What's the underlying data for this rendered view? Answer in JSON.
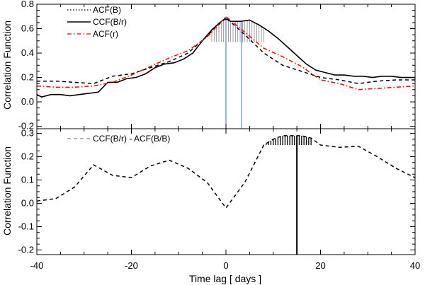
{
  "chart_data": [
    {
      "type": "line",
      "panel": "top",
      "ylabel": "Correlation Function",
      "xlim": [
        -40,
        40
      ],
      "ylim": [
        -0.22,
        0.8
      ],
      "yticks": [
        -0.2,
        0.0,
        0.2,
        0.4,
        0.6,
        0.8
      ],
      "ytick_labels": [
        "-0.2",
        "0.0",
        "0.2",
        "0.4",
        "0.6",
        "0.8"
      ],
      "legend_position": "top-left",
      "series": [
        {
          "name": "ACF(B)",
          "style": "dashed",
          "color": "#000000",
          "x": [
            -40,
            -36,
            -32,
            -28,
            -24,
            -20,
            -16,
            -12,
            -8,
            -4,
            0,
            4,
            8,
            12,
            16,
            20,
            24,
            28,
            32,
            36,
            40
          ],
          "y": [
            0.17,
            0.17,
            0.16,
            0.15,
            0.21,
            0.23,
            0.28,
            0.33,
            0.4,
            0.54,
            0.69,
            0.55,
            0.4,
            0.3,
            0.25,
            0.2,
            0.18,
            0.15,
            0.17,
            0.18,
            0.18
          ]
        },
        {
          "name": "CCF(B/r)",
          "style": "solid",
          "color": "#000000",
          "x": [
            -40,
            -39,
            -37,
            -35,
            -33,
            -31,
            -29,
            -27,
            -25,
            -23,
            -21,
            -19,
            -17,
            -15,
            -13,
            -11,
            -9,
            -7,
            -5,
            -3,
            -1,
            0,
            1,
            3,
            5,
            7,
            9,
            11,
            13,
            15,
            17,
            19,
            21,
            23,
            25,
            27,
            29,
            31,
            33,
            35,
            37,
            40
          ],
          "y": [
            0.06,
            0.04,
            0.06,
            0.06,
            0.05,
            0.06,
            0.07,
            0.08,
            0.16,
            0.16,
            0.19,
            0.2,
            0.23,
            0.28,
            0.31,
            0.32,
            0.35,
            0.4,
            0.5,
            0.59,
            0.66,
            0.68,
            0.66,
            0.66,
            0.67,
            0.63,
            0.58,
            0.52,
            0.45,
            0.38,
            0.31,
            0.26,
            0.24,
            0.22,
            0.22,
            0.21,
            0.21,
            0.2,
            0.21,
            0.21,
            0.2,
            0.2
          ]
        },
        {
          "name": "ACF(r)",
          "style": "dash-dot",
          "color": "#ff0000",
          "x": [
            -40,
            -36,
            -32,
            -28,
            -24,
            -20,
            -16,
            -12,
            -8,
            -4,
            0,
            4,
            8,
            12,
            16,
            20,
            24,
            28,
            32,
            36,
            40
          ],
          "y": [
            0.13,
            0.12,
            0.12,
            0.13,
            0.16,
            0.22,
            0.29,
            0.36,
            0.42,
            0.53,
            0.7,
            0.57,
            0.44,
            0.37,
            0.29,
            0.18,
            0.15,
            0.1,
            0.11,
            0.12,
            0.13
          ]
        }
      ],
      "annotations": {
        "hatch_region_x": [
          -3,
          8
        ],
        "hatch_threshold_y": 0.49,
        "vertical_lines_x": [
          0.0,
          3.3
        ]
      }
    },
    {
      "type": "line",
      "panel": "bottom",
      "xlabel": "Time lag  [ days ]",
      "ylabel": "Correlation Function",
      "xlim": [
        -40,
        40
      ],
      "ylim": [
        -0.22,
        0.32
      ],
      "xticks": [
        -40,
        -20,
        0,
        20,
        40
      ],
      "xtick_labels": [
        "-40",
        "-20",
        "0",
        "20",
        "40"
      ],
      "yticks": [
        -0.2,
        -0.1,
        0.0,
        0.1,
        0.2,
        0.3
      ],
      "ytick_labels": [
        "-0.2",
        "-0.1",
        "0.0",
        "0.1",
        "0.2",
        "0.3"
      ],
      "legend_position": "top-left",
      "series": [
        {
          "name": "CCF(B/r) - ACF(B/B)",
          "style": "dashed",
          "color": "#000000",
          "x": [
            -40,
            -36,
            -32,
            -28,
            -24,
            -20,
            -16,
            -12,
            -8,
            -4,
            0,
            4,
            8,
            10,
            12,
            14,
            16,
            18,
            20,
            24,
            28,
            32,
            36,
            40
          ],
          "y": [
            0.01,
            0.02,
            0.07,
            0.165,
            0.12,
            0.11,
            0.16,
            0.185,
            0.15,
            0.09,
            -0.02,
            0.09,
            0.25,
            0.275,
            0.29,
            0.29,
            0.29,
            0.28,
            0.25,
            0.24,
            0.245,
            0.2,
            0.15,
            0.11
          ]
        }
      ],
      "annotations": {
        "hatch_region_x": [
          8,
          18
        ],
        "hatch_threshold_y": 0.25,
        "vertical_lines_x": [
          15.0
        ]
      }
    }
  ],
  "colors": {
    "vline": "#3366ff",
    "hatch_grey": "#888888",
    "hatch_black": "#000000",
    "acf_r": "#ff0000"
  }
}
